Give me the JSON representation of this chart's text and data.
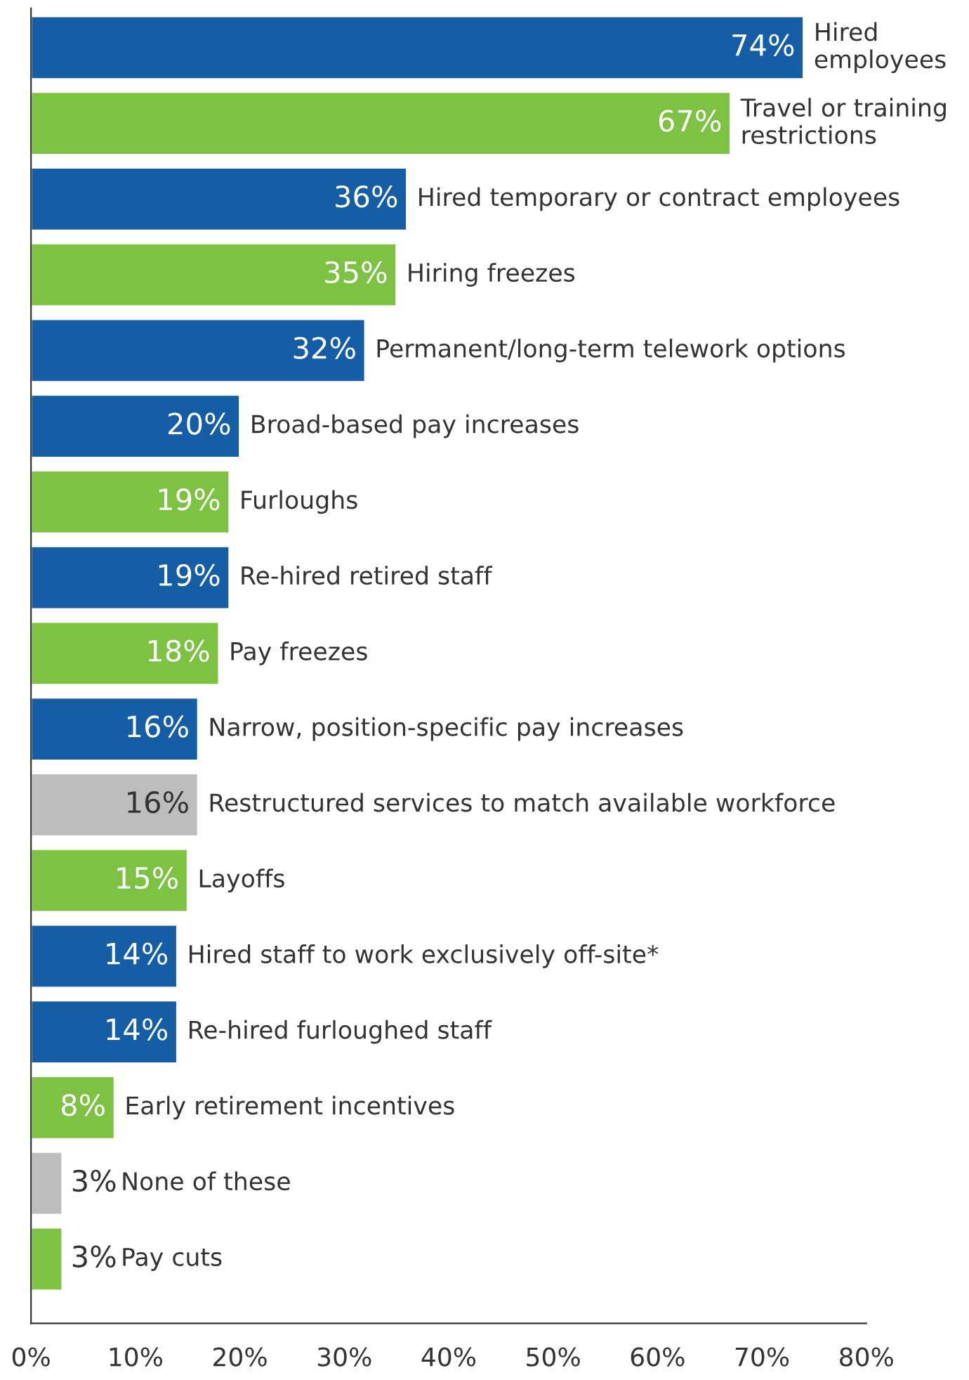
{
  "chart_data": {
    "type": "bar",
    "orientation": "horizontal",
    "categories": [
      "Hired employees",
      "Travel or training restrictions",
      "Hired temporary or contract employees",
      "Hiring freezes",
      "Permanent/long-term telework options",
      "Broad-based pay increases",
      "Furloughs",
      "Re-hired retired staff",
      "Pay freezes",
      "Narrow, position-specific pay increases",
      "Restructured services to match available workforce",
      "Layoffs",
      "Hired staff to work exclusively off-site*",
      "Re-hired furloughed staff",
      "Early retirement incentives",
      "None of these",
      "Pay cuts"
    ],
    "values": [
      74,
      67,
      36,
      35,
      32,
      20,
      19,
      19,
      18,
      16,
      16,
      15,
      14,
      14,
      8,
      3,
      3
    ],
    "value_labels": [
      "74%",
      "67%",
      "36%",
      "35%",
      "32%",
      "20%",
      "19%",
      "19%",
      "18%",
      "16%",
      "16%",
      "15%",
      "14%",
      "14%",
      "8%",
      "3%",
      "3%"
    ],
    "colors": [
      "#155ea6",
      "#7dc242",
      "#155ea6",
      "#7dc242",
      "#155ea6",
      "#155ea6",
      "#7dc242",
      "#155ea6",
      "#7dc242",
      "#155ea6",
      "#bdbdbd",
      "#7dc242",
      "#155ea6",
      "#155ea6",
      "#7dc242",
      "#bdbdbd",
      "#7dc242"
    ],
    "xlim": [
      0,
      80
    ],
    "xticks": [
      {
        "value": 0,
        "label": "0%"
      },
      {
        "value": 10,
        "label": "10%"
      },
      {
        "value": 20,
        "label": "20%"
      },
      {
        "value": 30,
        "label": "30%"
      },
      {
        "value": 40,
        "label": "40%"
      },
      {
        "value": 50,
        "label": "50%"
      },
      {
        "value": 60,
        "label": "60%"
      },
      {
        "value": 70,
        "label": "70%"
      },
      {
        "value": 80,
        "label": "80%"
      }
    ],
    "grid": false,
    "legend": false
  }
}
